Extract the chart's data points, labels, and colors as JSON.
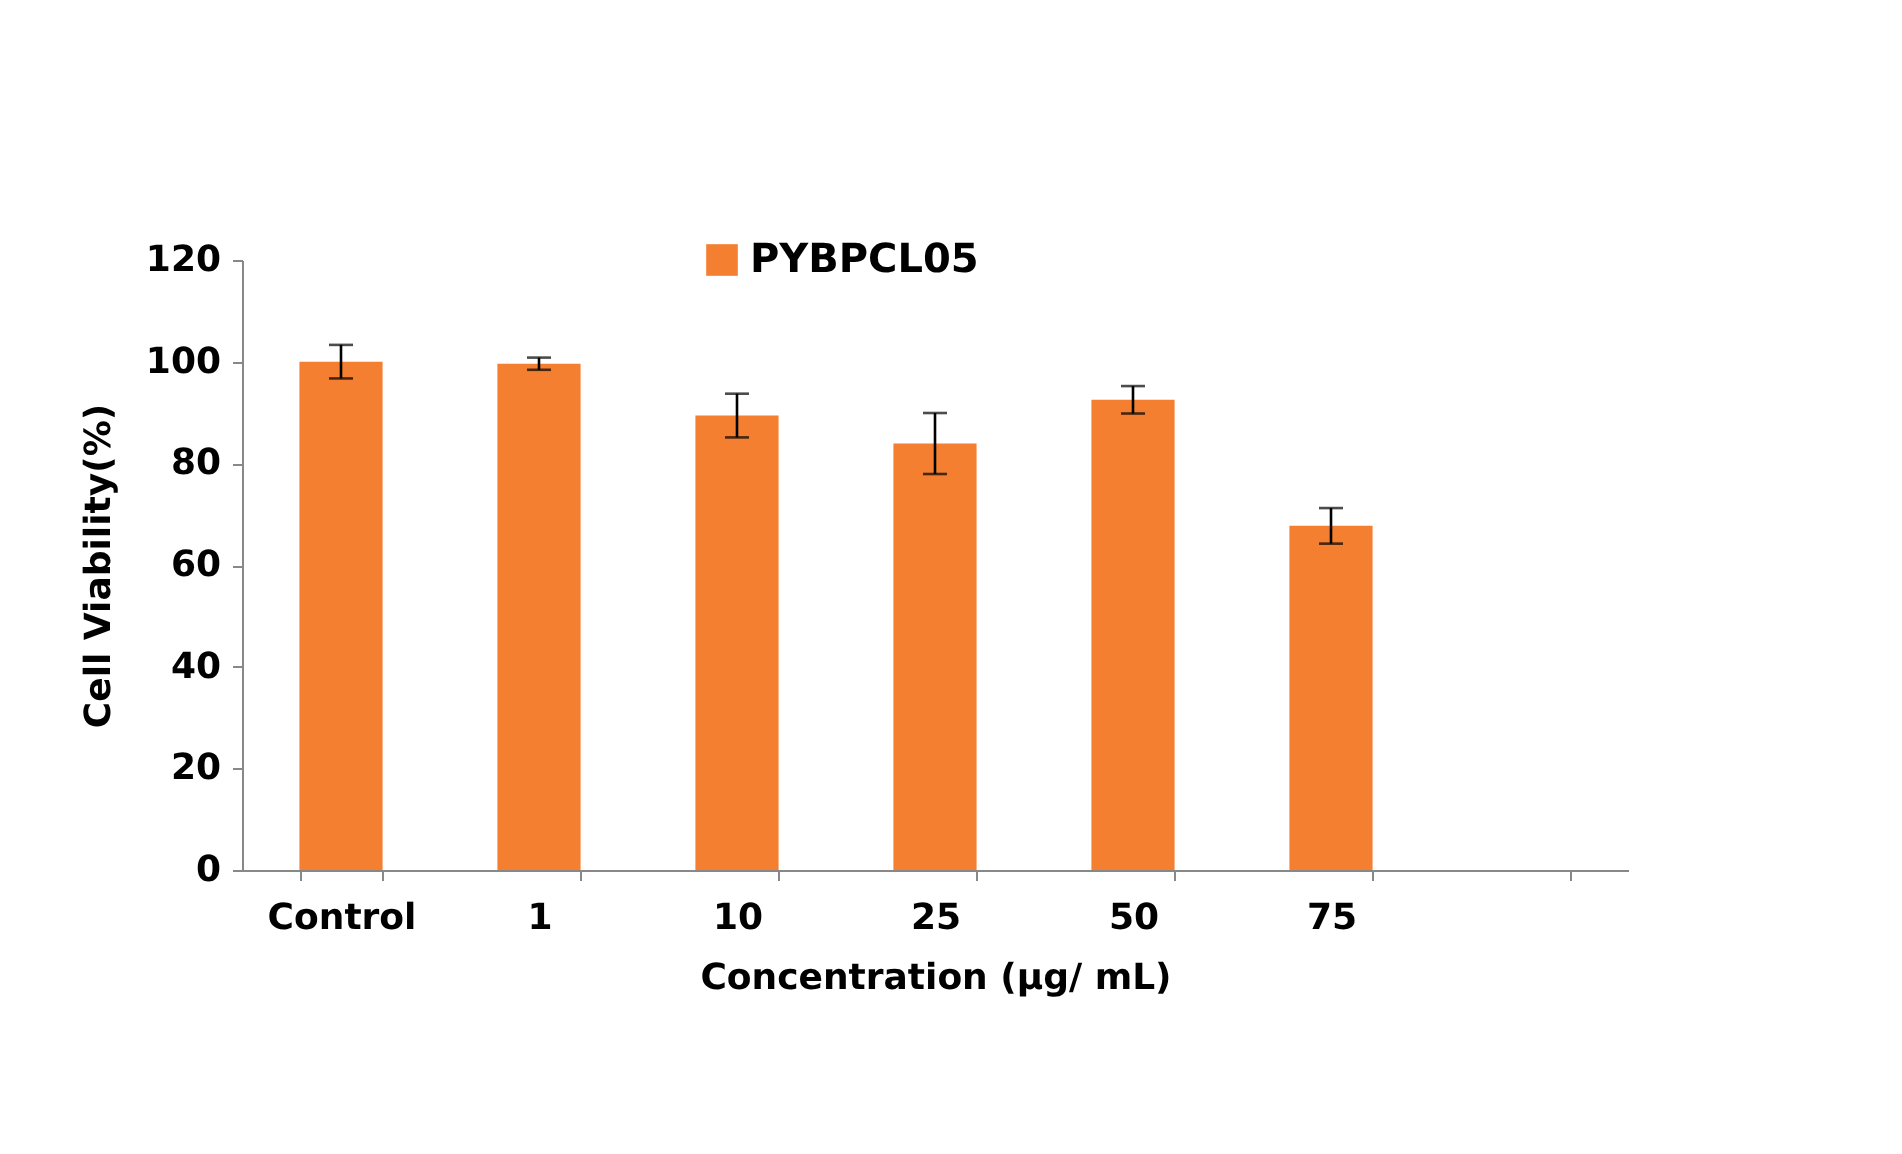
{
  "chart_data": {
    "type": "bar",
    "categories": [
      "Control",
      "1",
      "10",
      "25",
      "50",
      "75",
      null
    ],
    "series": [
      {
        "name": "PYBPCL05",
        "color": "#f47f30",
        "values": [
          100.0,
          99.6,
          89.4,
          83.9,
          92.5,
          67.7,
          null
        ],
        "errors": [
          3.3,
          1.2,
          4.3,
          6.0,
          2.7,
          3.5,
          null
        ]
      }
    ],
    "xlabel": "Concentration (µg/ mL)",
    "ylabel": "Cell Viability(%)",
    "ylim": [
      0,
      120
    ],
    "yticks": [
      0,
      20,
      40,
      60,
      80,
      100,
      120
    ],
    "legend": "top",
    "grid": false
  }
}
